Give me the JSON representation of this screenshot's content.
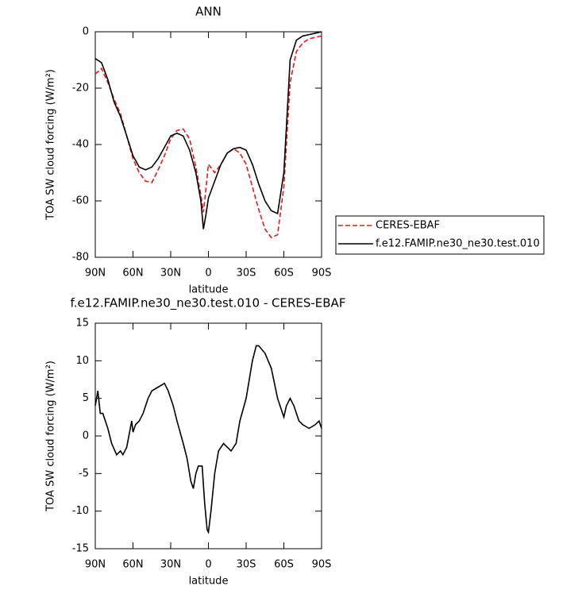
{
  "chart_data": [
    {
      "type": "line",
      "title": "ANN",
      "x_label": "latitude",
      "y_label": "TOA SW cloud forcing (W/m²)",
      "x": [
        90,
        85,
        80,
        75,
        70,
        65,
        60,
        55,
        50,
        45,
        40,
        35,
        30,
        25,
        20,
        15,
        10,
        6,
        4,
        2,
        0,
        -5,
        -10,
        -15,
        -20,
        -25,
        -30,
        -35,
        -40,
        -45,
        -50,
        -55,
        -60,
        -65,
        -70,
        -75,
        -80,
        -85,
        -90
      ],
      "series": [
        {
          "name": "CERES-EBAF",
          "color": "#e31a1c",
          "dashed": true,
          "values": [
            -15,
            -13,
            -18,
            -24,
            -29,
            -37,
            -45,
            -50,
            -53,
            -53.5,
            -49,
            -44,
            -38,
            -35,
            -34.5,
            -38,
            -48,
            -58,
            -64,
            -56,
            -47,
            -50,
            -47,
            -43,
            -41.5,
            -43,
            -47,
            -55,
            -63,
            -70,
            -73,
            -72,
            -55,
            -18,
            -7,
            -4,
            -2.5,
            -2,
            -1.5
          ]
        },
        {
          "name": "f.e12.FAMIP.ne30_ne30.test.010",
          "color": "#000000",
          "dashed": false,
          "values": [
            -9.5,
            -11,
            -17,
            -25,
            -30,
            -37,
            -44,
            -48,
            -49,
            -48,
            -45,
            -41,
            -37,
            -36,
            -37,
            -42,
            -50,
            -60,
            -70,
            -65,
            -59,
            -53,
            -47,
            -43,
            -41.5,
            -41,
            -42,
            -47,
            -54,
            -60,
            -63.5,
            -64.5,
            -50,
            -10,
            -3,
            -1.5,
            -1,
            -0.5,
            0
          ]
        }
      ],
      "xlim": [
        90,
        -90
      ],
      "xticks": [
        {
          "value": 90,
          "label": "90N"
        },
        {
          "value": 60,
          "label": "60N"
        },
        {
          "value": 30,
          "label": "30N"
        },
        0,
        {
          "value": -30,
          "label": "30S"
        },
        {
          "value": -60,
          "label": "60S"
        },
        {
          "value": -90,
          "label": "90S"
        }
      ],
      "ylim": [
        -80,
        0
      ],
      "yticks": [
        -80,
        -60,
        -40,
        -20,
        0
      ],
      "legend": "outside-right"
    },
    {
      "type": "line",
      "title": "f.e12.FAMIP.ne30_ne30.test.010 - CERES-EBAF",
      "x_label": "latitude",
      "y_label": "TOA SW cloud forcing (W/m²)",
      "x": [
        90,
        88,
        86,
        84,
        80,
        77,
        73,
        70,
        68,
        65,
        61,
        60,
        58,
        55,
        52,
        48,
        45,
        40,
        35,
        32,
        28,
        25,
        20,
        17,
        14,
        12,
        10,
        8,
        5,
        3,
        1,
        0,
        -2,
        -5,
        -8,
        -12,
        -15,
        -18,
        -22,
        -25,
        -30,
        -35,
        -38,
        -40,
        -45,
        -50,
        -55,
        -60,
        -62,
        -65,
        -68,
        -72,
        -75,
        -80,
        -85,
        -88,
        -90
      ],
      "values": [
        4,
        6,
        3,
        3,
        1,
        -1,
        -2.5,
        -2,
        -2.5,
        -1.5,
        2,
        0.5,
        1.5,
        2,
        3,
        5,
        6,
        6.5,
        7,
        6,
        4,
        2,
        -1,
        -3,
        -6,
        -7,
        -5,
        -4,
        -4,
        -9,
        -12.5,
        -12.8,
        -10,
        -5,
        -2,
        -1,
        -1.5,
        -2,
        -1,
        2,
        5,
        10,
        12,
        12,
        11,
        9,
        5,
        2.5,
        4,
        5,
        4,
        2,
        1.5,
        1,
        1.5,
        2,
        1
      ],
      "color": "#000000",
      "xlim": [
        90,
        -90
      ],
      "xticks": [
        {
          "value": 90,
          "label": "90N"
        },
        {
          "value": 60,
          "label": "60N"
        },
        {
          "value": 30,
          "label": "30N"
        },
        0,
        {
          "value": -30,
          "label": "30S"
        },
        {
          "value": -60,
          "label": "60S"
        },
        {
          "value": -90,
          "label": "90S"
        }
      ],
      "ylim": [
        -15,
        15
      ],
      "yticks": [
        -15,
        -10,
        -5,
        0,
        5,
        10,
        15
      ]
    }
  ]
}
